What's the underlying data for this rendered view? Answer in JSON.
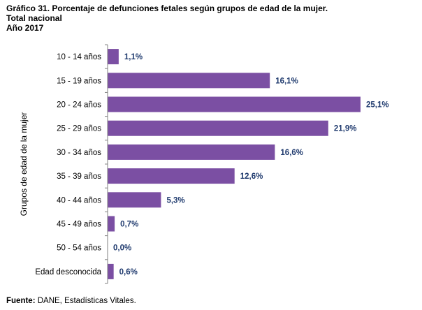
{
  "header": {
    "title": "Gráfico 31. Porcentaje de defunciones fetales según grupos de edad de la mujer.",
    "subtitle1": "Total nacional",
    "subtitle2": "Año 2017"
  },
  "source": {
    "label": "Fuente:",
    "text": " DANE, Estadísticas Vitales."
  },
  "colors": {
    "bar": "#7B4FA3",
    "value_label": "#1F3A6E",
    "axis": "#808080"
  },
  "chart_data": {
    "type": "bar",
    "orientation": "horizontal",
    "title": "Gráfico 31. Porcentaje de defunciones fetales según grupos de edad de la mujer.",
    "ylabel": "Grupos de edad de la mujer",
    "xlabel": "",
    "xlim": [
      0,
      25.1
    ],
    "grid": false,
    "legend": "none",
    "categories": [
      "10 - 14 años",
      "15 - 19 años",
      "20 - 24 años",
      "25 - 29 años",
      "30 - 34 años",
      "35 - 39 años",
      "40 - 44 años",
      "45 - 49 años",
      "50 - 54 años",
      "Edad desconocida"
    ],
    "values": [
      1.1,
      16.1,
      25.1,
      21.9,
      16.6,
      12.6,
      5.3,
      0.7,
      0.0,
      0.6
    ],
    "value_labels": [
      "1,1%",
      "16,1%",
      "25,1%",
      "21,9%",
      "16,6%",
      "12,6%",
      "5,3%",
      "0,7%",
      "0,0%",
      "0,6%"
    ]
  }
}
